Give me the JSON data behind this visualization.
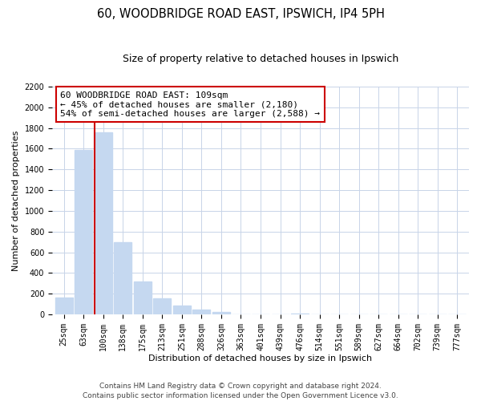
{
  "title": "60, WOODBRIDGE ROAD EAST, IPSWICH, IP4 5PH",
  "subtitle": "Size of property relative to detached houses in Ipswich",
  "xlabel": "Distribution of detached houses by size in Ipswich",
  "ylabel": "Number of detached properties",
  "bar_labels": [
    "25sqm",
    "63sqm",
    "100sqm",
    "138sqm",
    "175sqm",
    "213sqm",
    "251sqm",
    "288sqm",
    "326sqm",
    "363sqm",
    "401sqm",
    "439sqm",
    "476sqm",
    "514sqm",
    "551sqm",
    "589sqm",
    "627sqm",
    "664sqm",
    "702sqm",
    "739sqm",
    "777sqm"
  ],
  "bar_values": [
    160,
    1590,
    1760,
    700,
    320,
    155,
    85,
    45,
    20,
    0,
    0,
    0,
    10,
    0,
    0,
    0,
    0,
    0,
    0,
    0,
    0
  ],
  "bar_color": "#c5d8f0",
  "highlight_line_color": "#cc0000",
  "vline_x_index": 2,
  "annotation_text": "60 WOODBRIDGE ROAD EAST: 109sqm\n← 45% of detached houses are smaller (2,180)\n54% of semi-detached houses are larger (2,588) →",
  "annotation_box_color": "#ffffff",
  "annotation_box_edge": "#cc0000",
  "ylim": [
    0,
    2200
  ],
  "yticks": [
    0,
    200,
    400,
    600,
    800,
    1000,
    1200,
    1400,
    1600,
    1800,
    2000,
    2200
  ],
  "footer_line1": "Contains HM Land Registry data © Crown copyright and database right 2024.",
  "footer_line2": "Contains public sector information licensed under the Open Government Licence v3.0.",
  "bg_color": "#ffffff",
  "grid_color": "#c8d4e8",
  "title_fontsize": 10.5,
  "subtitle_fontsize": 9,
  "label_fontsize": 8,
  "tick_fontsize": 7,
  "footer_fontsize": 6.5,
  "ann_fontsize": 8
}
